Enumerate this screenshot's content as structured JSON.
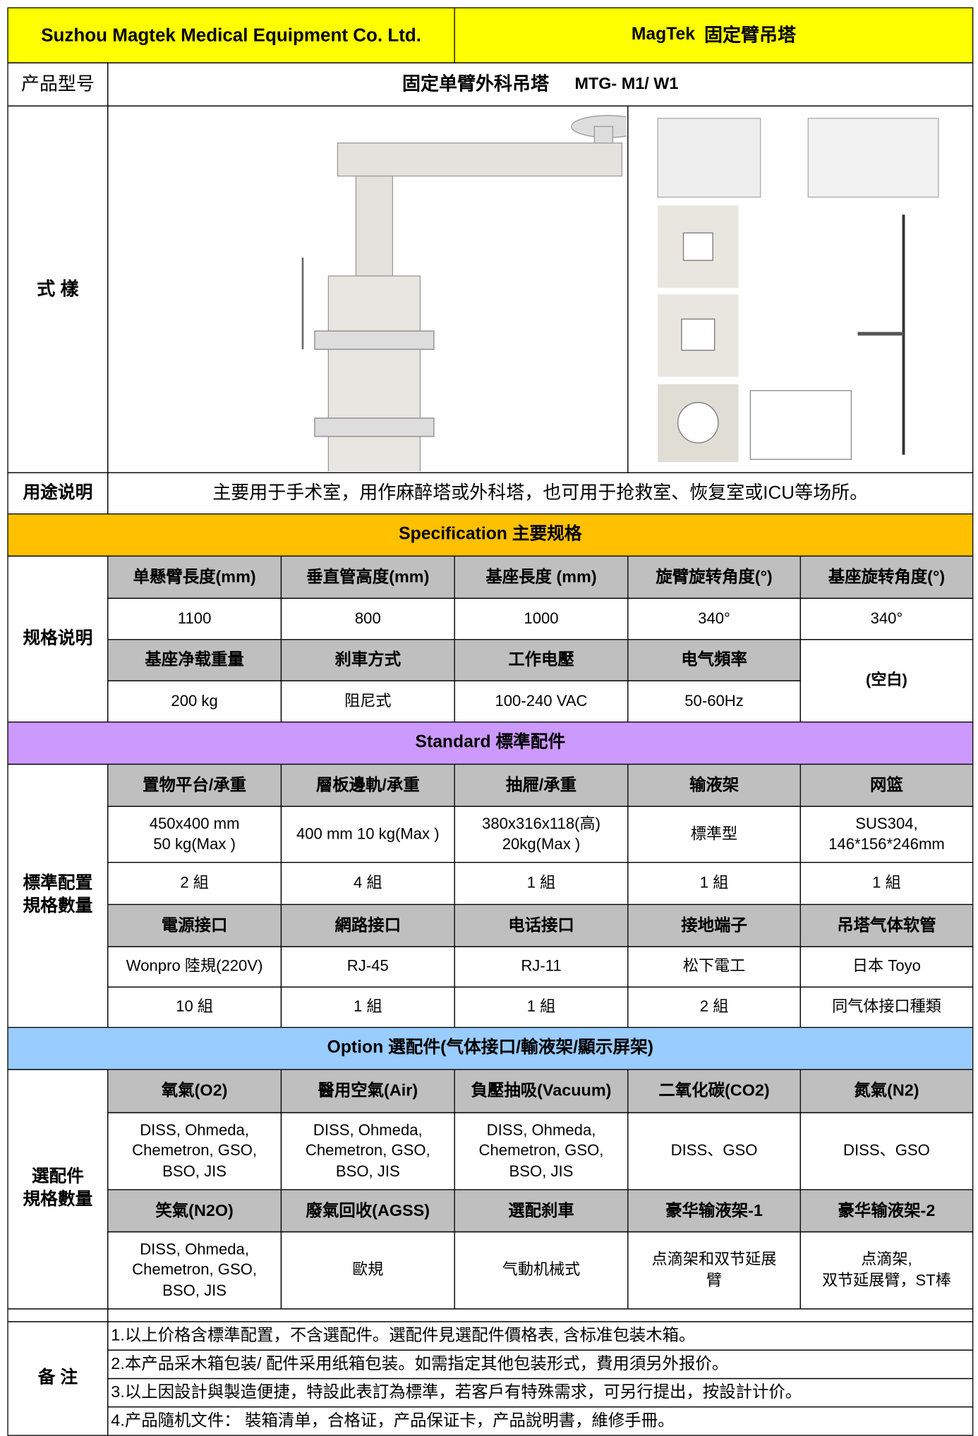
{
  "header": {
    "company": "Suzhou Magtek Medical Equipment Co. Ltd.",
    "brand": "MagTek",
    "product": "固定臂吊塔"
  },
  "model": {
    "label": "产品型号",
    "name": "固定单臂外科吊塔",
    "code": "MTG- M1/ W1"
  },
  "style": {
    "label": "式  樣"
  },
  "usage": {
    "label": "用途说明",
    "text": "主要用于手术室，用作麻醉塔或外科塔，也可用于抢救室、恢复室或ICU等场所。"
  },
  "specification": {
    "title": "Specification 主要规格",
    "label": "规格说明",
    "rows": [
      [
        "单懸臂長度(mm)",
        "垂直管高度(mm)",
        "基座長度 (mm)",
        "旋臂旋转角度(°)",
        "基座旋转角度(°)"
      ],
      [
        "1100",
        "800",
        "1000",
        "340°",
        "340°"
      ],
      [
        "基座净载重量",
        "刹車方式",
        "工作电壓",
        "电气頻率"
      ],
      [
        "200 kg",
        "阻尼式",
        "100-240 VAC",
        "50-60Hz"
      ]
    ],
    "blank": "(空白)"
  },
  "standard": {
    "title": "Standard  標準配件",
    "label": "標準配置\n規格數量",
    "rows": [
      [
        "置物平台/承重",
        "層板邊軌/承重",
        "抽屜/承重",
        "输液架",
        "网篮"
      ],
      [
        "450x400 mm\n50 kg(Max )",
        "400 mm   10 kg(Max )",
        "380x316x118(高)\n20kg(Max )",
        "標準型",
        "SUS304,\n146*156*246mm"
      ],
      [
        "2 組",
        "4 組",
        "1 組",
        "1 組",
        "1 組"
      ],
      [
        "電源接口",
        "網路接口",
        "电话接口",
        "接地端子",
        "吊塔气体软管"
      ],
      [
        "Wonpro 陸規(220V)",
        "RJ-45",
        "RJ-11",
        "松下電工",
        "日本 Toyo"
      ],
      [
        "10 組",
        "1 組",
        "1 組",
        "2 組",
        "同气体接口種類"
      ]
    ]
  },
  "option": {
    "title": "Option  選配件(气体接口/輸液架/顯示屏架)",
    "label": "選配件\n規格數量",
    "rows": [
      [
        "氧氣(O2)",
        "醫用空氣(Air)",
        "負壓抽吸(Vacuum)",
        "二氧化碳(CO2)",
        "氮氣(N2)"
      ],
      [
        "DISS, Ohmeda,\nChemetron, GSO,\nBSO, JIS",
        "DISS, Ohmeda,\nChemetron, GSO,\nBSO, JIS",
        "DISS, Ohmeda,\nChemetron, GSO,\nBSO, JIS",
        "DISS、GSO",
        "DISS、GSO"
      ],
      [
        "笑氣(N2O)",
        "廢氣回收(AGSS)",
        "選配刹車",
        "豪华输液架-1",
        "豪华输液架-2"
      ],
      [
        "DISS, Ohmeda,\nChemetron, GSO,\nBSO, JIS",
        "歐規",
        "气動机械式",
        "点滴架和双节延展\n臂",
        "点滴架,\n双节延展臂，ST棒"
      ]
    ]
  },
  "notes": {
    "label": "备  注",
    "items": [
      "1.以上价格含標準配置，不含選配件。選配件見選配件價格表, 含标准包装木箱。",
      "2.本产品采木箱包装/ 配件采用纸箱包装。如需指定其他包装形式，費用須另外报价。",
      "3.以上因設計與製造便捷，特設此表訂為標準，若客戶有特殊需求，可另行提出，按設計计价。",
      "4.产品隨机文件： 裝箱清单，合格证，产品保证卡，产品說明書，維修手冊。"
    ]
  }
}
